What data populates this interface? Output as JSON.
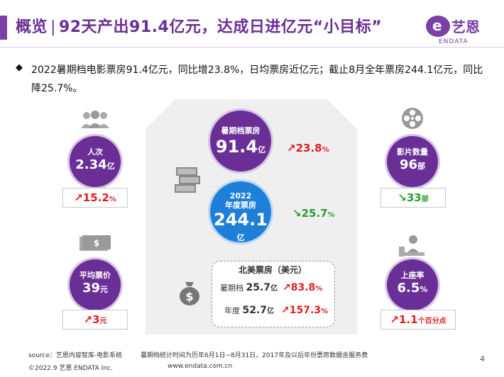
{
  "header": {
    "title_left": "概览",
    "title_sep": "|",
    "title_right": "92天产出91.4亿元，达成日进亿元“小目标”",
    "logo_cn": "艺恩",
    "logo_en": "ENDATA"
  },
  "summary": {
    "bullet": "◆",
    "text": "2022暑期档电影票房91.4亿元，同比增23.8%，日均票房近亿元；截止8月全年票房244.1亿元，同比降25.7%。"
  },
  "summer_box_office": {
    "label": "暑期档票房",
    "value": "91.4",
    "unit": "亿",
    "change": "23.8",
    "change_unit": "%",
    "direction": "up"
  },
  "annual_box_office": {
    "label_line1": "2022",
    "label_line2": "年度票房",
    "value": "244.1",
    "unit": "亿",
    "change": "25.7",
    "change_unit": "%",
    "direction": "down"
  },
  "north_america": {
    "title": "北美票房（美元）",
    "rows": [
      {
        "label": "暑期档",
        "value": "25.7",
        "unit": "亿",
        "change": "83.8",
        "change_unit": "%",
        "direction": "up"
      },
      {
        "label": "年度",
        "value": "52.7",
        "unit": "亿",
        "change": "157.3",
        "change_unit": "%",
        "direction": "up"
      }
    ]
  },
  "attendance": {
    "label": "人次",
    "value": "2.34",
    "unit": "亿",
    "change": "15.2",
    "change_unit": "%",
    "direction": "up",
    "icon": "people-icon"
  },
  "avg_price": {
    "label": "平均票价",
    "value": "39",
    "unit": "元",
    "change": "3",
    "change_unit": "元",
    "direction": "up",
    "icon": "cash-icon"
  },
  "film_count": {
    "label": "影片数量",
    "value": "96",
    "unit": "部",
    "change": "33",
    "change_unit": "部",
    "direction": "down",
    "icon": "film-reel-icon"
  },
  "occupancy": {
    "label": "上座率",
    "value": "6.5",
    "unit": "%",
    "change": "1.1",
    "change_unit": "个百分点",
    "direction": "up",
    "icon": "seat-person-icon"
  },
  "footer": {
    "source": "source：艺恩内容智库-电影系统",
    "note": "暑期档统计时间为历年6月1日~8月31日，2017年及以后年份票房数据含服务费",
    "copyright": "©2022.9 艺恩 ENDATA Inc.",
    "url": "www.endata.com.cn",
    "page": "4"
  },
  "colors": {
    "purple": "#6a2f96",
    "blue": "#1e7fd8",
    "up": "#e02020",
    "down": "#2e9b2e"
  }
}
